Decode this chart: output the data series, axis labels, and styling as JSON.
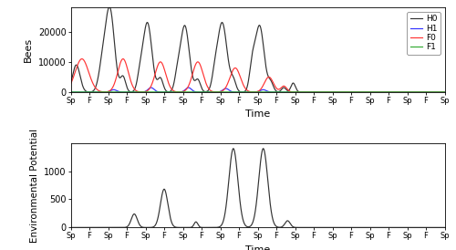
{
  "subplot1_ylabel": "Bees",
  "subplot2_ylabel": "Environmental Potential",
  "xlabel": "Time",
  "x_tick_labels": [
    "Sp",
    "F",
    "Sp",
    "F",
    "Sp",
    "F",
    "Sp",
    "F",
    "Sp",
    "F",
    "Sp",
    "F",
    "Sp",
    "F",
    "Sp",
    "F",
    "Sp",
    "F",
    "Sp",
    "F",
    "Sp"
  ],
  "legend_labels": [
    "H0",
    "H1",
    "F0",
    "F1"
  ],
  "line_colors": [
    "#333333",
    "#3333ff",
    "#ff3333",
    "#33aa33"
  ],
  "ylim1": [
    0,
    28000
  ],
  "yticks1": [
    0,
    10000,
    20000
  ],
  "ytick_labels1": [
    "0",
    "10000",
    "20000"
  ],
  "ylim2": [
    0,
    1500
  ],
  "yticks2": [
    0,
    500,
    1000
  ],
  "ytick_labels2": [
    "0",
    "500",
    "1000"
  ],
  "background_color": "#ffffff",
  "panel_bg": "#ffffff",
  "n_ticks": 21
}
